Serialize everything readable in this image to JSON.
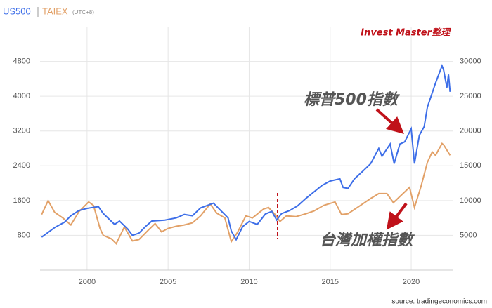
{
  "chart_data": {
    "type": "line",
    "subtitle": "(UTC+8)",
    "annotations": [
      "Invest Master整理",
      "標普500指數",
      "台灣加權指數"
    ],
    "source": "source: tradingeconomics.com",
    "xlim": [
      1997.1,
      2022.6
    ],
    "xticks": [
      2000,
      2005,
      2010,
      2015,
      2020
    ],
    "ylim": [
      0,
      5600
    ],
    "yticks": [
      800,
      1600,
      2400,
      3200,
      4000,
      4800
    ],
    "y2lim": [
      0,
      35000
    ],
    "y2ticks": [
      5000,
      10000,
      15000,
      20000,
      25000,
      30000
    ],
    "grid": true,
    "series": [
      {
        "name": "US500",
        "color": "#3d6ee8",
        "x": [
          1997.2,
          1998,
          1998.6,
          1999,
          1999.5,
          2000,
          2000.7,
          2001,
          2001.7,
          2002,
          2002.5,
          2002.8,
          2003.2,
          2003.6,
          2004,
          2004.8,
          2005.5,
          2006,
          2006.5,
          2007,
          2007.8,
          2008.3,
          2008.7,
          2008.9,
          2009.2,
          2009.6,
          2010,
          2010.5,
          2011,
          2011.4,
          2011.7,
          2012,
          2012.5,
          2013,
          2013.5,
          2014,
          2014.5,
          2015,
          2015.6,
          2015.8,
          2016.1,
          2016.5,
          2017,
          2017.5,
          2018,
          2018.2,
          2018.7,
          2018.95,
          2019.3,
          2019.6,
          2020,
          2020.2,
          2020.5,
          2020.8,
          2021,
          2021.5,
          2021.9,
          2022,
          2022.2,
          2022.3,
          2022.4
        ],
        "values": [
          760,
          980,
          1100,
          1250,
          1370,
          1420,
          1460,
          1300,
          1050,
          1130,
          950,
          800,
          850,
          1000,
          1130,
          1150,
          1200,
          1280,
          1250,
          1430,
          1540,
          1350,
          1200,
          900,
          700,
          1000,
          1120,
          1050,
          1290,
          1350,
          1150,
          1300,
          1370,
          1480,
          1650,
          1800,
          1950,
          2050,
          2100,
          1900,
          1880,
          2100,
          2270,
          2450,
          2800,
          2620,
          2900,
          2450,
          2900,
          2950,
          3250,
          2450,
          3100,
          3300,
          3750,
          4300,
          4700,
          4600,
          4200,
          4500,
          4100
        ]
      },
      {
        "name": "TAIEX",
        "color": "#e2a168",
        "axis": "y2",
        "x": [
          1997.2,
          1997.6,
          1998,
          1998.5,
          1999,
          1999.5,
          2000.1,
          2000.4,
          2000.8,
          2001,
          2001.5,
          2001.8,
          2002.3,
          2002.8,
          2003.2,
          2003.8,
          2004.2,
          2004.6,
          2005,
          2005.5,
          2006,
          2006.5,
          2007,
          2007.6,
          2008,
          2008.5,
          2008.9,
          2009.3,
          2009.8,
          2010.2,
          2010.9,
          2011.2,
          2011.6,
          2011.9,
          2012.3,
          2012.9,
          2013.5,
          2014,
          2014.6,
          2015.3,
          2015.7,
          2016.1,
          2016.8,
          2017.5,
          2018,
          2018.5,
          2018.9,
          2019.4,
          2019.9,
          2020.2,
          2020.6,
          2021,
          2021.3,
          2021.5,
          2021.9,
          2022,
          2022.4
        ],
        "values": [
          8000,
          10000,
          8300,
          7500,
          6500,
          8400,
          9800,
          9300,
          6000,
          5000,
          4500,
          3800,
          6200,
          4200,
          4400,
          5800,
          6700,
          5500,
          6000,
          6300,
          6500,
          6800,
          7800,
          9500,
          8200,
          7500,
          4100,
          5500,
          7800,
          7500,
          8800,
          9000,
          8000,
          7000,
          7800,
          7700,
          8100,
          8500,
          9300,
          9800,
          8000,
          8100,
          9200,
          10300,
          11000,
          11000,
          9700,
          10800,
          11900,
          9000,
          12000,
          15500,
          17000,
          16500,
          18200,
          18000,
          16500
        ]
      }
    ]
  }
}
